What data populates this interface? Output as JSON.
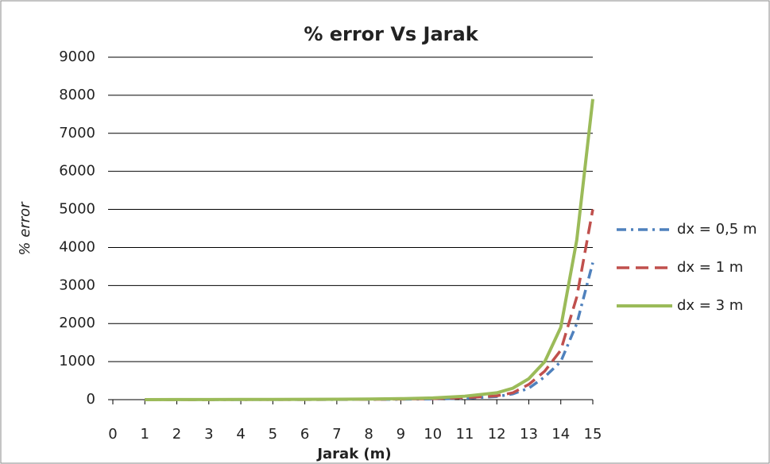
{
  "chart_data": {
    "type": "line",
    "title": "% error Vs Jarak",
    "x_label": "Jarak (m)",
    "y_label": "% error",
    "x": [
      1,
      2,
      3,
      4,
      5,
      6,
      7,
      8,
      9,
      10,
      11,
      12,
      12.5,
      13,
      13.5,
      14,
      14.5,
      15
    ],
    "series": [
      {
        "name": "dx = 0,5 m",
        "color": "#4f81bd",
        "dash": "dashdot",
        "values": [
          0,
          0,
          1,
          1,
          2,
          2,
          3,
          5,
          9,
          18,
          35,
          80,
          150,
          300,
          600,
          1000,
          2000,
          3600
        ]
      },
      {
        "name": "dx = 1 m",
        "color": "#c0504d",
        "dash": "dashed",
        "values": [
          0,
          1,
          1,
          2,
          2,
          3,
          5,
          8,
          14,
          25,
          50,
          100,
          180,
          400,
          750,
          1300,
          2700,
          5000
        ]
      },
      {
        "name": "dx = 3 m",
        "color": "#9bbb59",
        "dash": "solid",
        "values": [
          1,
          2,
          3,
          4,
          5,
          7,
          10,
          15,
          25,
          45,
          90,
          180,
          300,
          550,
          1000,
          1900,
          4200,
          7900
        ]
      }
    ],
    "xlim": [
      0,
      15
    ],
    "xticks": [
      0,
      1,
      2,
      3,
      4,
      5,
      6,
      7,
      8,
      9,
      10,
      11,
      12,
      13,
      14,
      15
    ],
    "ylim": [
      0,
      9000
    ],
    "yticks": [
      0,
      1000,
      2000,
      3000,
      4000,
      5000,
      6000,
      7000,
      8000,
      9000
    ],
    "grid": true,
    "legend": "right"
  }
}
